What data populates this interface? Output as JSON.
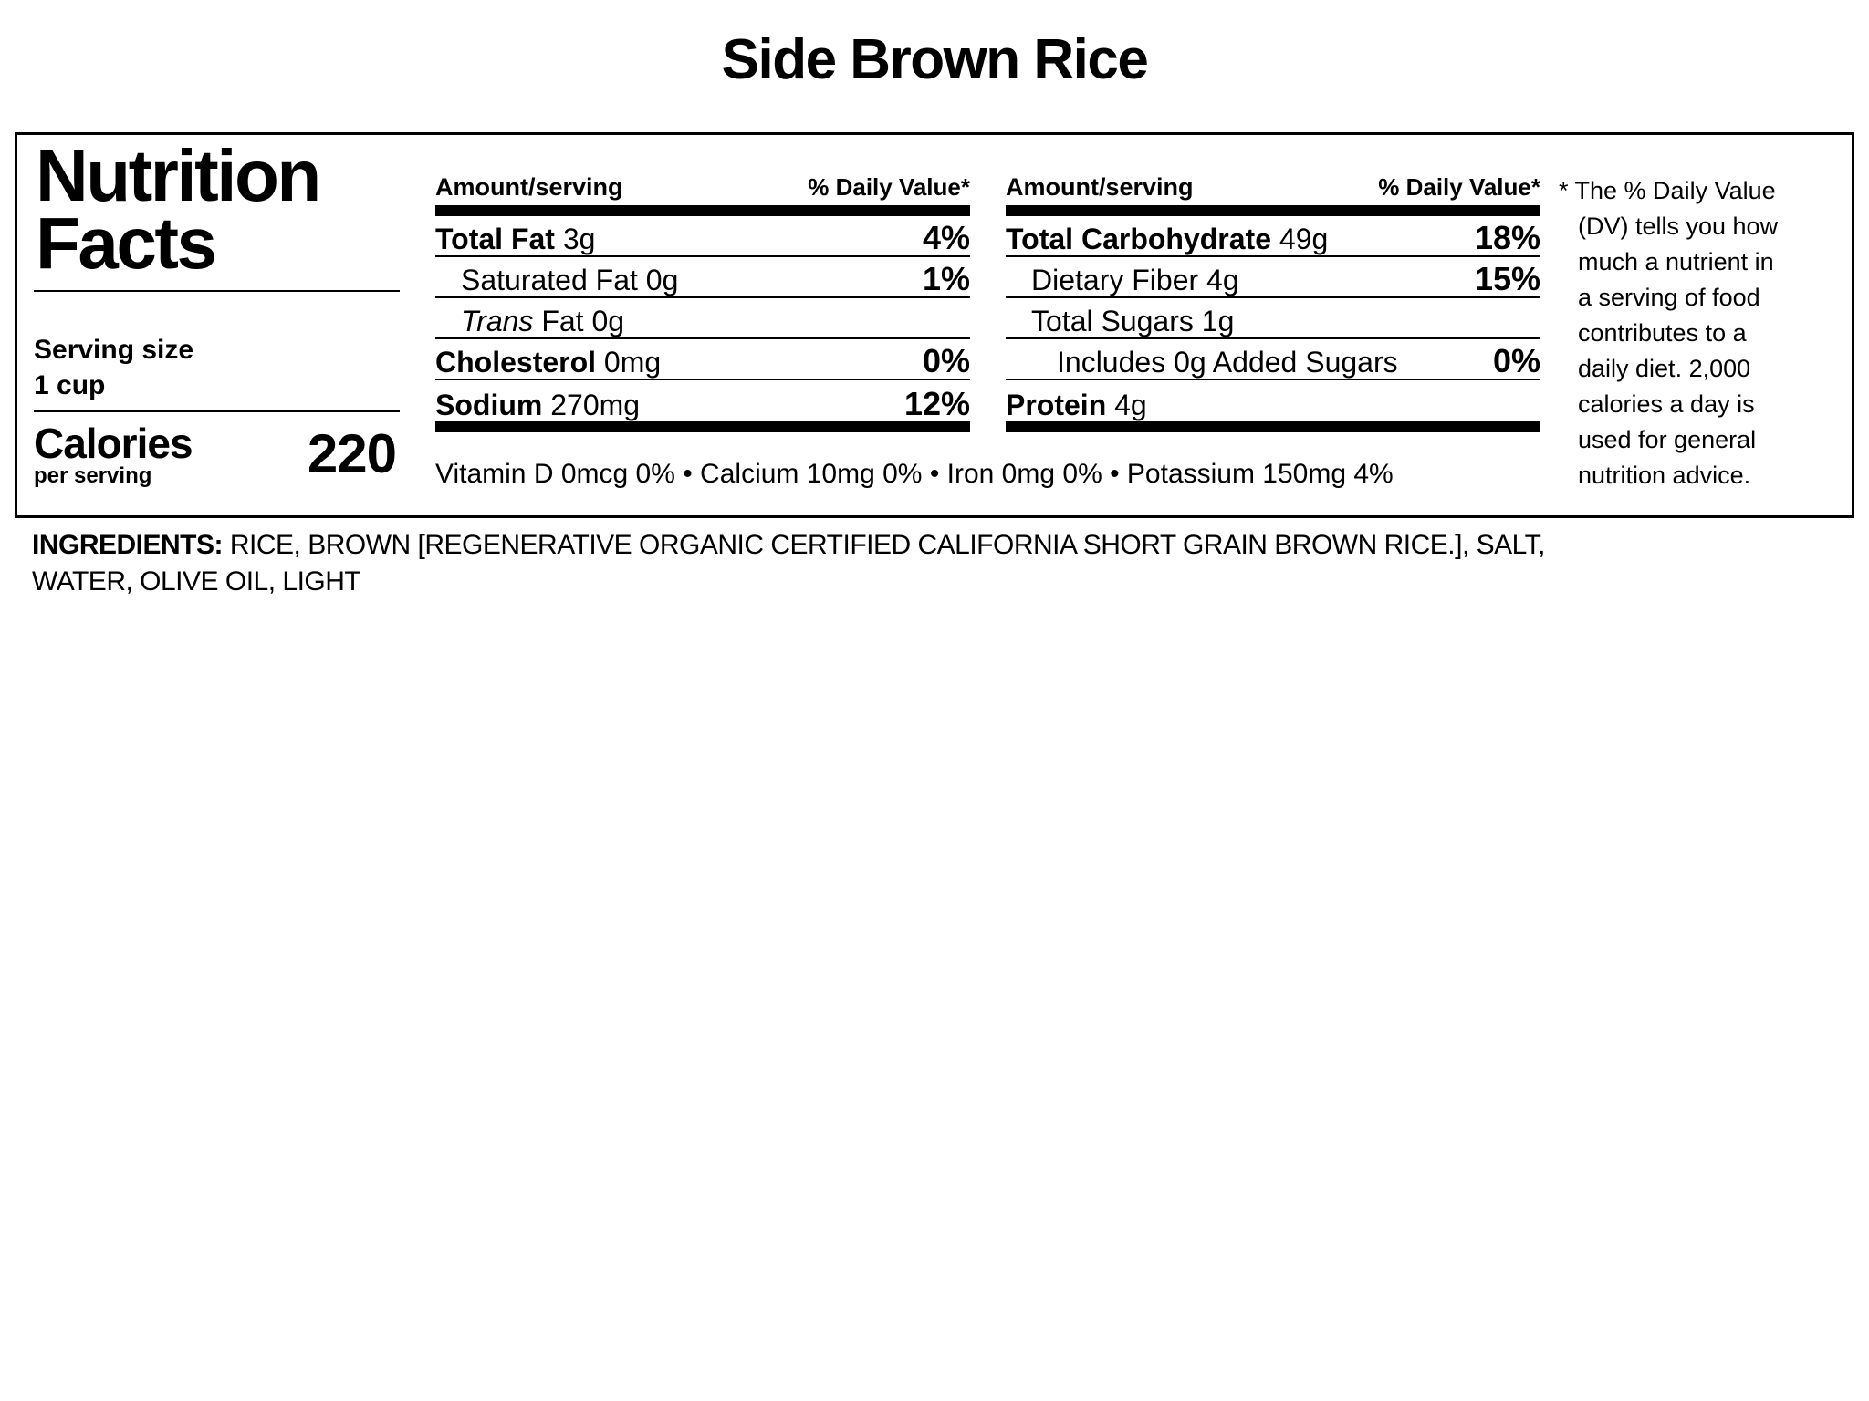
{
  "page_title": "Side Brown Rice",
  "nutrition_label": {
    "heading": {
      "line1": "Nutrition",
      "line2": "Facts"
    },
    "serving": {
      "label": "Serving size",
      "value": "1 cup"
    },
    "calories": {
      "label": "Calories",
      "sublabel": "per serving",
      "value": "220"
    },
    "col1": {
      "header_amount": "Amount/serving",
      "header_dv": "% Daily Value*",
      "rows": [
        {
          "lead": "Total Fat",
          "rest": " 3g",
          "dv": "4%"
        },
        {
          "lead": "",
          "rest": "Saturated Fat 0g",
          "dv": "1%"
        },
        {
          "lead": "Trans",
          "rest": " Fat 0g",
          "dv": ""
        },
        {
          "lead": "Cholesterol",
          "rest": " 0mg",
          "dv": "0%"
        },
        {
          "lead": "Sodium",
          "rest": " 270mg",
          "dv": "12%"
        }
      ]
    },
    "col2": {
      "header_amount": "Amount/serving",
      "header_dv": "% Daily Value*",
      "rows": [
        {
          "lead": "Total Carbohydrate",
          "rest": " 49g",
          "dv": "18%"
        },
        {
          "lead": "",
          "rest": "Dietary Fiber 4g",
          "dv": "15%"
        },
        {
          "lead": "",
          "rest": "Total Sugars 1g",
          "dv": ""
        },
        {
          "lead": "",
          "rest": "Includes 0g Added Sugars",
          "dv": "0%"
        },
        {
          "lead": "Protein",
          "rest": " 4g",
          "dv": ""
        }
      ]
    },
    "vitamins": "Vitamin D 0mcg 0% • Calcium 10mg 0% • Iron 0mg 0% • Potassium 150mg 4%",
    "footnote": "* The % Daily Value (DV) tells you how much a nutrient in a serving of food contributes to a daily diet. 2,000 calories a day is used for general nutrition advice."
  },
  "ingredients": {
    "label": "INGREDIENTS:",
    "line1_rest": " RICE, BROWN [REGENERATIVE ORGANIC CERTIFIED CALIFORNIA SHORT GRAIN BROWN RICE.], SALT,",
    "line2": "WATER, OLIVE OIL, LIGHT"
  }
}
